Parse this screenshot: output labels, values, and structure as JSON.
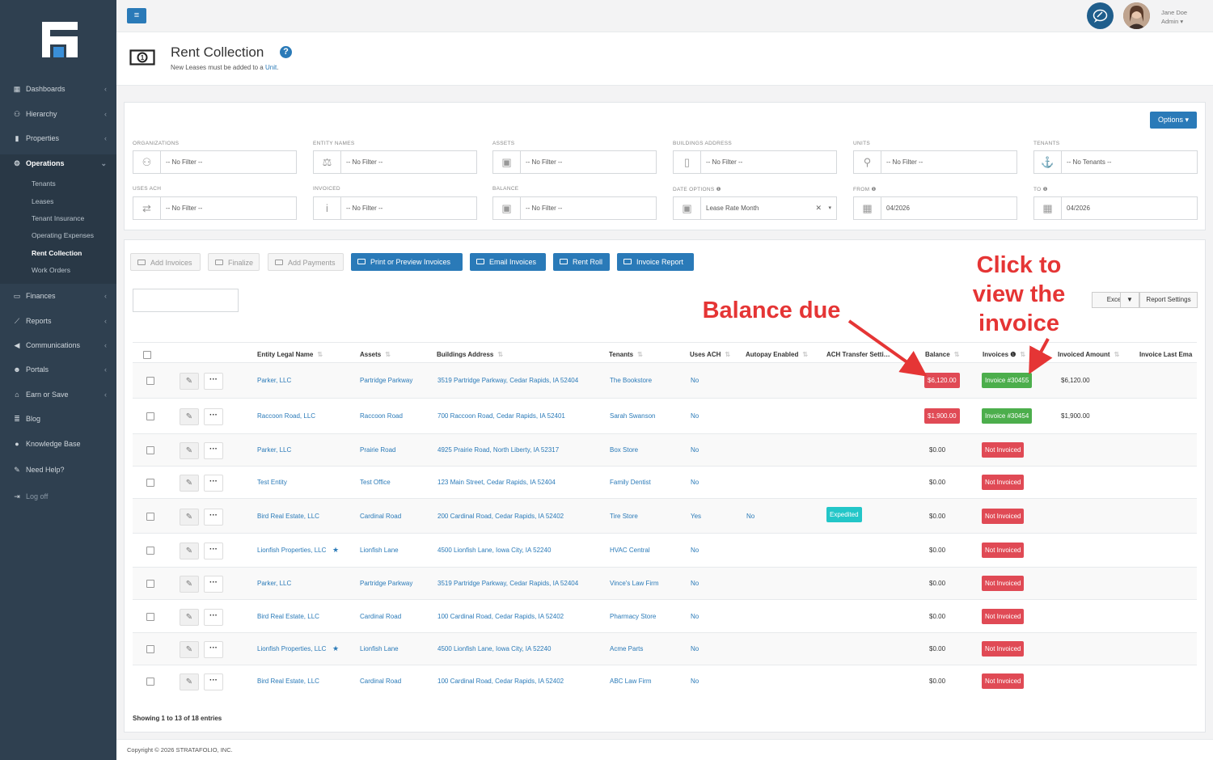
{
  "sidebar": {
    "items": [
      {
        "label": "Dashboards",
        "icon": "dashboard-icon",
        "chevron": true
      },
      {
        "label": "Hierarchy",
        "icon": "hierarchy-icon",
        "chevron": true
      },
      {
        "label": "Properties",
        "icon": "bar-chart-icon",
        "chevron": true
      },
      {
        "label": "Operations",
        "icon": "gears-icon",
        "chevron": true,
        "active": true
      },
      {
        "label": "Finances",
        "icon": "money-icon",
        "chevron": true
      },
      {
        "label": "Reports",
        "icon": "line-chart-icon",
        "chevron": true
      },
      {
        "label": "Communications",
        "icon": "bullhorn-icon",
        "chevron": true
      },
      {
        "label": "Portals",
        "icon": "users-icon",
        "chevron": true
      },
      {
        "label": "Earn or Save",
        "icon": "unlock-icon",
        "chevron": true
      },
      {
        "label": "Blog",
        "icon": "blog-icon",
        "chevron": false
      },
      {
        "label": "Knowledge Base",
        "icon": "question-icon",
        "chevron": false
      },
      {
        "label": "Need Help?",
        "icon": "chat-icon",
        "chevron": false
      },
      {
        "label": "Log off",
        "icon": "logoff-icon",
        "chevron": false
      }
    ],
    "operations_sub": [
      "Tenants",
      "Leases",
      "Tenant Insurance",
      "Operating Expenses",
      "Rent Collection",
      "Work Orders"
    ]
  },
  "topbar": {
    "user_name": "Jane Doe",
    "user_role": "Admin ▾"
  },
  "header": {
    "title": "Rent Collection",
    "subtitle_prefix": "New Leases must be added to a ",
    "subtitle_link": "Unit",
    "subtitle_suffix": "."
  },
  "filters": {
    "options_label": "Options ▾",
    "fields": [
      {
        "label": "Organizations",
        "value": "-- No Filter --",
        "icon": "org-icon"
      },
      {
        "label": "Entity Names",
        "value": "-- No Filter --",
        "icon": "scale-icon"
      },
      {
        "label": "Assets",
        "value": "-- No Filter --",
        "icon": "asset-icon"
      },
      {
        "label": "Buildings Address",
        "value": "-- No Filter --",
        "icon": "building-icon"
      },
      {
        "label": "Units",
        "value": "-- No Filter --",
        "icon": "key-icon"
      },
      {
        "label": "Tenants",
        "value": "-- No Tenants --",
        "icon": "tenant-icon"
      },
      {
        "label": "Uses ACH",
        "value": "-- No Filter --",
        "icon": "ach-icon"
      },
      {
        "label": "Invoiced",
        "value": "-- No Filter --",
        "icon": "info-icon"
      },
      {
        "label": "Balance",
        "value": "-- No Filter --",
        "icon": "asset-icon"
      },
      {
        "label": "Date Options ❶",
        "value": "Lease Rate Month",
        "icon": "asset-icon"
      },
      {
        "label": "From ❶",
        "value": "04/2026",
        "icon": "calendar-icon"
      },
      {
        "label": "To ❶",
        "value": "04/2026",
        "icon": "calendar-icon"
      }
    ]
  },
  "toolbar": {
    "add_invoices": "Add Invoices",
    "finalize": "Finalize",
    "add_payments": "Add Payments",
    "print_preview": "Print or Preview Invoices",
    "email_invoices": "Email Invoices",
    "rent_roll": "Rent Roll",
    "invoice_report": "Invoice Report",
    "excel": "Excel",
    "excel_dd": "▼",
    "report_settings": "Report Settings"
  },
  "table": {
    "columns": [
      "Entity Legal Name",
      "Assets",
      "Buildings Address",
      "Tenants",
      "Uses ACH",
      "Autopay Enabled",
      "ACH Transfer Setti…",
      "Balance",
      "Invoices ❶",
      "Invoiced Amount",
      "Invoice Last Ema"
    ],
    "rows": [
      {
        "entity": "Parker, LLC",
        "star": false,
        "asset": "Partridge Parkway",
        "address": "3519 Partridge Parkway, Cedar Rapids, IA 52404",
        "tenant": "The Bookstore",
        "ach": "No",
        "autopay": "",
        "ach_setting": "",
        "balance": "$6,120.00",
        "balance_due": true,
        "invoice": "Invoice #30455",
        "invoiced": true,
        "invoiced_amount": "$6,120.00"
      },
      {
        "entity": "Raccoon Road, LLC",
        "star": false,
        "asset": "Raccoon Road",
        "address": "700 Raccoon Road, Cedar Rapids, IA 52401",
        "tenant": "Sarah Swanson",
        "ach": "No",
        "autopay": "",
        "ach_setting": "",
        "balance": "$1,900.00",
        "balance_due": true,
        "invoice": "Invoice #30454",
        "invoiced": true,
        "invoiced_amount": "$1,900.00"
      },
      {
        "entity": "Parker, LLC",
        "star": false,
        "asset": "Prairie Road",
        "address": "4925 Prairie Road, North Liberty, IA 52317",
        "tenant": "Box Store",
        "ach": "No",
        "autopay": "",
        "ach_setting": "",
        "balance": "$0.00",
        "balance_due": false,
        "invoice": "Not Invoiced",
        "invoiced": false,
        "invoiced_amount": ""
      },
      {
        "entity": "Test Entity",
        "star": false,
        "asset": "Test Office",
        "address": "123 Main Street, Cedar Rapids, IA 52404",
        "tenant": "Family Dentist",
        "ach": "No",
        "autopay": "",
        "ach_setting": "",
        "balance": "$0.00",
        "balance_due": false,
        "invoice": "Not Invoiced",
        "invoiced": false,
        "invoiced_amount": ""
      },
      {
        "entity": "Bird Real Estate, LLC",
        "star": false,
        "asset": "Cardinal Road",
        "address": "200 Cardinal Road, Cedar Rapids, IA 52402",
        "tenant": "Tire Store",
        "ach": "Yes",
        "autopay": "No",
        "ach_setting": "Expedited",
        "balance": "$0.00",
        "balance_due": false,
        "invoice": "Not Invoiced",
        "invoiced": false,
        "invoiced_amount": ""
      },
      {
        "entity": "Lionfish Properties, LLC",
        "star": true,
        "asset": "Lionfish Lane",
        "address": "4500 Lionfish Lane, Iowa City, IA 52240",
        "tenant": "HVAC Central",
        "ach": "No",
        "autopay": "",
        "ach_setting": "",
        "balance": "$0.00",
        "balance_due": false,
        "invoice": "Not Invoiced",
        "invoiced": false,
        "invoiced_amount": ""
      },
      {
        "entity": "Parker, LLC",
        "star": false,
        "asset": "Partridge Parkway",
        "address": "3519 Partridge Parkway, Cedar Rapids, IA 52404",
        "tenant": "Vince's Law Firm",
        "ach": "No",
        "autopay": "",
        "ach_setting": "",
        "balance": "$0.00",
        "balance_due": false,
        "invoice": "Not Invoiced",
        "invoiced": false,
        "invoiced_amount": ""
      },
      {
        "entity": "Bird Real Estate, LLC",
        "star": false,
        "asset": "Cardinal Road",
        "address": "100 Cardinal Road, Cedar Rapids, IA 52402",
        "tenant": "Pharmacy Store",
        "ach": "No",
        "autopay": "",
        "ach_setting": "",
        "balance": "$0.00",
        "balance_due": false,
        "invoice": "Not Invoiced",
        "invoiced": false,
        "invoiced_amount": ""
      },
      {
        "entity": "Lionfish Properties, LLC",
        "star": true,
        "asset": "Lionfish Lane",
        "address": "4500 Lionfish Lane, Iowa City, IA 52240",
        "tenant": "Acme Parts",
        "ach": "No",
        "autopay": "",
        "ach_setting": "",
        "balance": "$0.00",
        "balance_due": false,
        "invoice": "Not Invoiced",
        "invoiced": false,
        "invoiced_amount": ""
      },
      {
        "entity": "Bird Real Estate, LLC",
        "star": false,
        "asset": "Cardinal Road",
        "address": "100 Cardinal Road, Cedar Rapids, IA 52402",
        "tenant": "ABC Law Firm",
        "ach": "No",
        "autopay": "",
        "ach_setting": "",
        "balance": "$0.00",
        "balance_due": false,
        "invoice": "Not Invoiced",
        "invoiced": false,
        "invoiced_amount": ""
      }
    ],
    "info": "Showing 1 to 13 of 18 entries"
  },
  "annotations": {
    "balance_due": "Balance due",
    "click_to_view": [
      "Click to",
      "view the",
      "invoice"
    ],
    "color": "#e53535"
  },
  "footer": {
    "copyright": "Copyright © 2026 STRATAFOLIO, INC."
  },
  "colors": {
    "sidebar": "#2f4050",
    "primary": "#2a7ab8",
    "danger": "#e04a55",
    "success": "#4cae4c",
    "info": "#23c6c8"
  }
}
